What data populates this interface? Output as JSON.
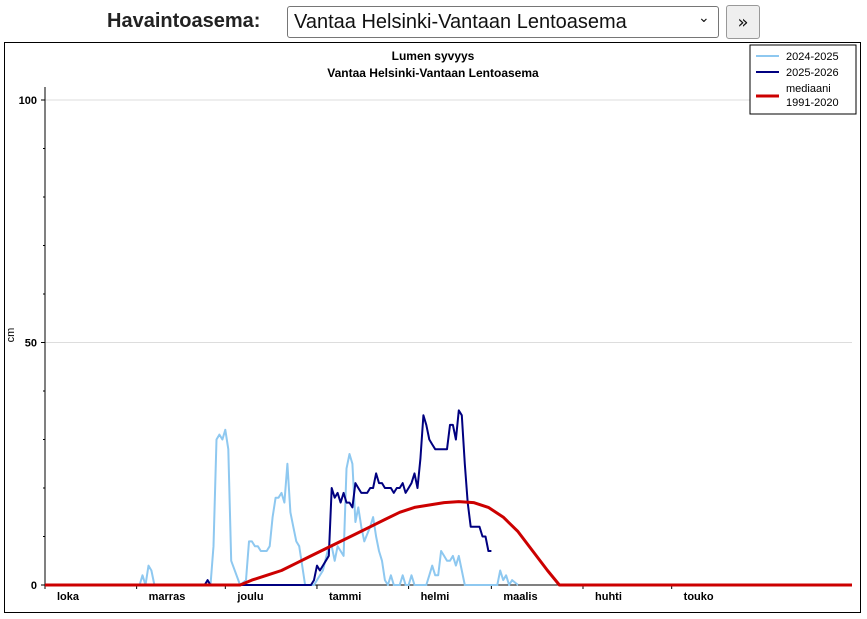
{
  "toolbar": {
    "station_label": "Havaintoasema:",
    "selected_station": "Vantaa Helsinki-Vantaan Lentoasema",
    "next_button": "»"
  },
  "chart_data": {
    "type": "line",
    "title": "Lumen syvyys",
    "subtitle": "Vantaa Helsinki-Vantaan Lentoasema",
    "ylabel": "cm",
    "xlabel": "",
    "ylim": [
      0,
      100
    ],
    "yticks": [
      0,
      50,
      100
    ],
    "x_unit": "days from 1 October",
    "xlim": [
      0,
      273
    ],
    "month_ticks": [
      {
        "label": "loka",
        "day": 0
      },
      {
        "label": "marras",
        "day": 31
      },
      {
        "label": "joulu",
        "day": 61
      },
      {
        "label": "tammi",
        "day": 92
      },
      {
        "label": "helmi",
        "day": 123
      },
      {
        "label": "maalis",
        "day": 151
      },
      {
        "label": "huhti",
        "day": 182
      },
      {
        "label": "touko",
        "day": 212
      }
    ],
    "grid": "horizontal",
    "legend": "top-right",
    "series": [
      {
        "name": "2024-2025",
        "color": "#8ec8f0",
        "points": [
          [
            0,
            0
          ],
          [
            32,
            0
          ],
          [
            33,
            2
          ],
          [
            34,
            0
          ],
          [
            35,
            4
          ],
          [
            36,
            3
          ],
          [
            37,
            0
          ],
          [
            55,
            0
          ],
          [
            56,
            0
          ],
          [
            57,
            8
          ],
          [
            58,
            30
          ],
          [
            59,
            31
          ],
          [
            60,
            30
          ],
          [
            61,
            32
          ],
          [
            62,
            28
          ],
          [
            63,
            5
          ],
          [
            66,
            0
          ],
          [
            68,
            1
          ],
          [
            69,
            9
          ],
          [
            70,
            9
          ],
          [
            71,
            8
          ],
          [
            72,
            8
          ],
          [
            73,
            7
          ],
          [
            74,
            7
          ],
          [
            75,
            7
          ],
          [
            76,
            8
          ],
          [
            77,
            14
          ],
          [
            78,
            18
          ],
          [
            79,
            18
          ],
          [
            80,
            19
          ],
          [
            81,
            17
          ],
          [
            82,
            25
          ],
          [
            83,
            15
          ],
          [
            84,
            12
          ],
          [
            85,
            9
          ],
          [
            86,
            8
          ],
          [
            87,
            4
          ],
          [
            88,
            0
          ],
          [
            89,
            0
          ],
          [
            90,
            0
          ],
          [
            91,
            0
          ],
          [
            94,
            3
          ],
          [
            96,
            8
          ],
          [
            97,
            8
          ],
          [
            98,
            5
          ],
          [
            99,
            8
          ],
          [
            100,
            7
          ],
          [
            101,
            6
          ],
          [
            102,
            24
          ],
          [
            103,
            27
          ],
          [
            104,
            25
          ],
          [
            105,
            13
          ],
          [
            106,
            16
          ],
          [
            107,
            12
          ],
          [
            108,
            9
          ],
          [
            110,
            12
          ],
          [
            111,
            14
          ],
          [
            112,
            10
          ],
          [
            113,
            7
          ],
          [
            114,
            5
          ],
          [
            115,
            1
          ],
          [
            116,
            0
          ],
          [
            117,
            2
          ],
          [
            118,
            0
          ],
          [
            119,
            0
          ],
          [
            120,
            0
          ],
          [
            121,
            2
          ],
          [
            122,
            0
          ],
          [
            123,
            0
          ],
          [
            124,
            2
          ],
          [
            125,
            0
          ],
          [
            126,
            0
          ],
          [
            127,
            0
          ],
          [
            128,
            0
          ],
          [
            129,
            0
          ],
          [
            130,
            2
          ],
          [
            131,
            4
          ],
          [
            132,
            2
          ],
          [
            133,
            2
          ],
          [
            134,
            7
          ],
          [
            135,
            6
          ],
          [
            136,
            5
          ],
          [
            137,
            5
          ],
          [
            138,
            6
          ],
          [
            139,
            4
          ],
          [
            140,
            6
          ],
          [
            141,
            3
          ],
          [
            142,
            0
          ],
          [
            148,
            0
          ],
          [
            149,
            0
          ],
          [
            150,
            0
          ],
          [
            151,
            0
          ],
          [
            152,
            0
          ],
          [
            153,
            0
          ],
          [
            154,
            3
          ],
          [
            155,
            1
          ],
          [
            156,
            2
          ],
          [
            157,
            0
          ],
          [
            158,
            1
          ],
          [
            160,
            0
          ]
        ]
      },
      {
        "name": "2025-2026",
        "color": "#000080",
        "points": [
          [
            0,
            0
          ],
          [
            54,
            0
          ],
          [
            55,
            1
          ],
          [
            56,
            0
          ],
          [
            90,
            0
          ],
          [
            91,
            1
          ],
          [
            92,
            4
          ],
          [
            93,
            3
          ],
          [
            94,
            4
          ],
          [
            95,
            5
          ],
          [
            96,
            6
          ],
          [
            97,
            20
          ],
          [
            98,
            18
          ],
          [
            99,
            19
          ],
          [
            100,
            17
          ],
          [
            101,
            19
          ],
          [
            102,
            17
          ],
          [
            103,
            17
          ],
          [
            104,
            16
          ],
          [
            105,
            21
          ],
          [
            106,
            20
          ],
          [
            107,
            19
          ],
          [
            108,
            19
          ],
          [
            109,
            19
          ],
          [
            110,
            20
          ],
          [
            111,
            20
          ],
          [
            112,
            23
          ],
          [
            113,
            21
          ],
          [
            114,
            21
          ],
          [
            115,
            20
          ],
          [
            116,
            20
          ],
          [
            117,
            20
          ],
          [
            118,
            19
          ],
          [
            119,
            20
          ],
          [
            120,
            20
          ],
          [
            121,
            21
          ],
          [
            122,
            19
          ],
          [
            123,
            20
          ],
          [
            124,
            21
          ],
          [
            125,
            23
          ],
          [
            126,
            20
          ],
          [
            127,
            26
          ],
          [
            128,
            35
          ],
          [
            129,
            33
          ],
          [
            130,
            30
          ],
          [
            131,
            29
          ],
          [
            132,
            28
          ],
          [
            133,
            28
          ],
          [
            134,
            28
          ],
          [
            135,
            28
          ],
          [
            136,
            28
          ],
          [
            137,
            33
          ],
          [
            138,
            33
          ],
          [
            139,
            30
          ],
          [
            140,
            36
          ],
          [
            141,
            35
          ],
          [
            142,
            25
          ],
          [
            143,
            17
          ],
          [
            144,
            12
          ],
          [
            145,
            12
          ],
          [
            146,
            12
          ],
          [
            147,
            12
          ],
          [
            148,
            10
          ],
          [
            149,
            10
          ],
          [
            150,
            7
          ],
          [
            151,
            7
          ]
        ]
      },
      {
        "name": "mediaani\n1991-2020",
        "color": "#cc0000",
        "points": [
          [
            0,
            0
          ],
          [
            66,
            0
          ],
          [
            70,
            1
          ],
          [
            75,
            2
          ],
          [
            80,
            3
          ],
          [
            85,
            4.5
          ],
          [
            90,
            6
          ],
          [
            95,
            7.5
          ],
          [
            100,
            9
          ],
          [
            105,
            10.5
          ],
          [
            110,
            12
          ],
          [
            115,
            13.5
          ],
          [
            120,
            15
          ],
          [
            125,
            16
          ],
          [
            130,
            16.5
          ],
          [
            135,
            17
          ],
          [
            140,
            17.2
          ],
          [
            145,
            17
          ],
          [
            150,
            16
          ],
          [
            155,
            14
          ],
          [
            160,
            11
          ],
          [
            165,
            7
          ],
          [
            170,
            3
          ],
          [
            174,
            0
          ],
          [
            273,
            0
          ]
        ]
      }
    ],
    "legend_entries": [
      "2024-2025",
      "2025-2026",
      "mediaani",
      "1991-2020"
    ]
  }
}
